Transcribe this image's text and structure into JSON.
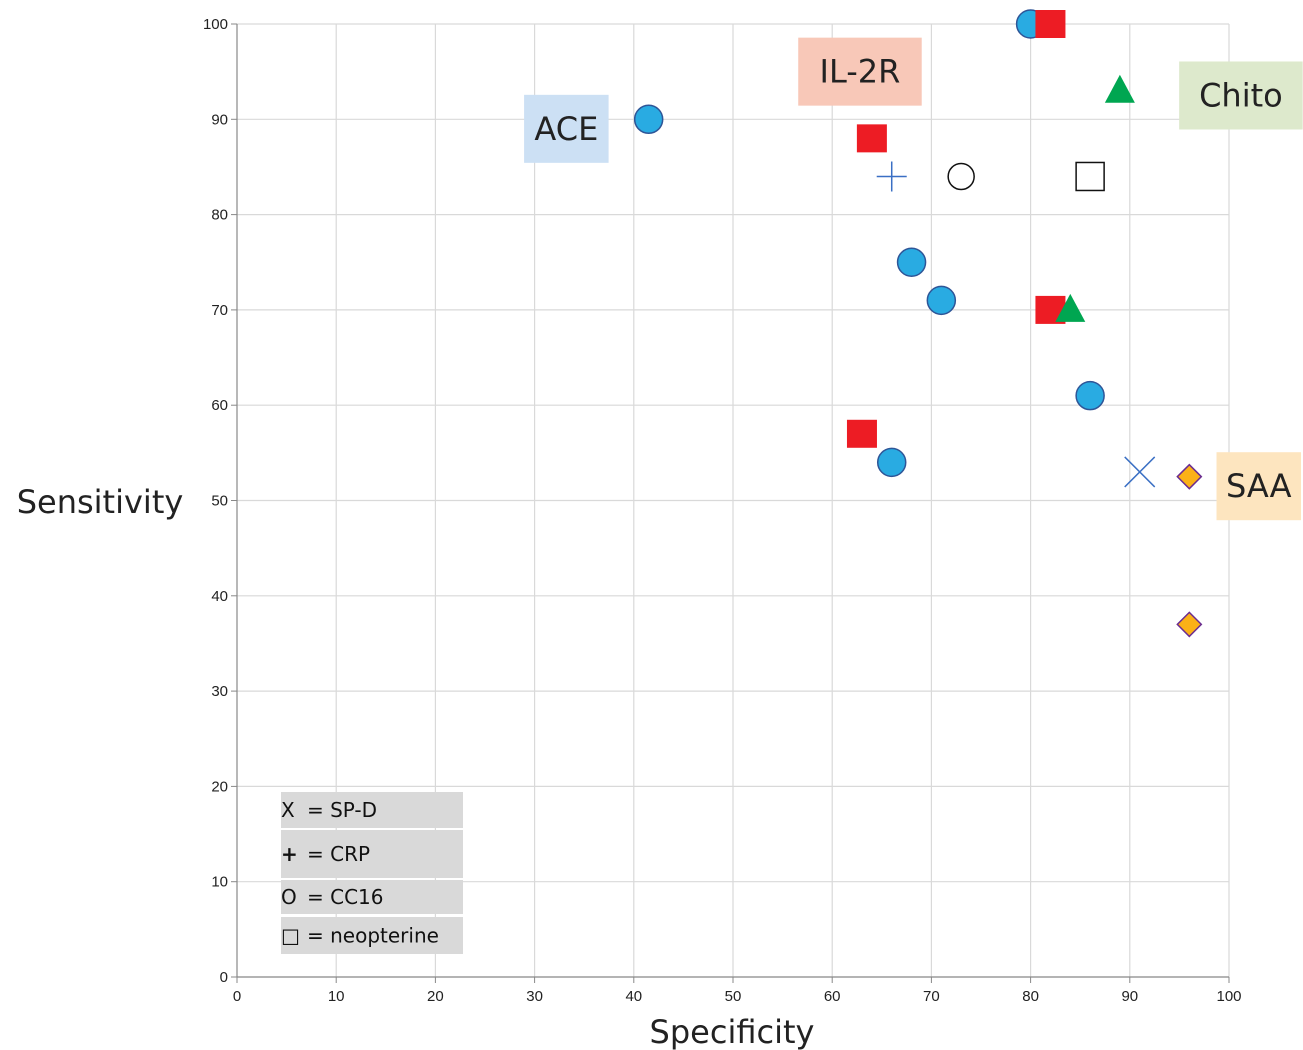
{
  "chart_data": {
    "type": "scatter",
    "xlabel": "Specificity",
    "ylabel": "Sensitivity",
    "xlim": [
      0,
      100
    ],
    "ylim": [
      0,
      100
    ],
    "xticks": [
      "0",
      "10",
      "20",
      "30",
      "40",
      "50",
      "60",
      "70",
      "80",
      "90",
      "100"
    ],
    "yticks": [
      "0",
      "10",
      "20",
      "30",
      "40",
      "50",
      "60",
      "70",
      "80",
      "90",
      "100"
    ],
    "grid": true,
    "series": [
      {
        "name": "ACE",
        "marker": "circle",
        "color": "#29abe2",
        "points": [
          [
            41.5,
            90
          ],
          [
            80,
            100
          ],
          [
            68,
            75
          ],
          [
            71,
            71
          ],
          [
            86,
            61
          ],
          [
            66,
            54
          ]
        ]
      },
      {
        "name": "IL-2R",
        "marker": "square",
        "color": "#ed1c24",
        "points": [
          [
            82,
            100
          ],
          [
            64,
            88
          ],
          [
            82,
            70
          ],
          [
            63,
            57
          ]
        ]
      },
      {
        "name": "Chito",
        "marker": "triangle",
        "color": "#00a651",
        "points": [
          [
            89,
            93
          ],
          [
            84,
            70
          ]
        ]
      },
      {
        "name": "SAA",
        "marker": "diamond",
        "color": "#fbb117",
        "points": [
          [
            96,
            52.5
          ],
          [
            96,
            37
          ]
        ]
      },
      {
        "name": "CRP",
        "marker": "plus",
        "color": "#3a6fc4",
        "points": [
          [
            66,
            84
          ]
        ]
      },
      {
        "name": "CC16",
        "marker": "open-circle",
        "color": "#111111",
        "points": [
          [
            73,
            84
          ]
        ]
      },
      {
        "name": "neopterine",
        "marker": "open-square",
        "color": "#111111",
        "points": [
          [
            86,
            84
          ]
        ]
      },
      {
        "name": "SP-D",
        "marker": "x",
        "color": "#3a6fc4",
        "points": [
          [
            91,
            53
          ]
        ]
      }
    ],
    "annotations": [
      {
        "text": "ACE",
        "x": 33.2,
        "y": 89,
        "bg": "#cce0f4"
      },
      {
        "text": "IL-2R",
        "x": 62.8,
        "y": 95,
        "bg": "#f8c8b8"
      },
      {
        "text": "Chito",
        "x": 101.2,
        "y": 92.5,
        "bg": "#dde9cc"
      },
      {
        "text": "SAA",
        "x": 103,
        "y": 51.5,
        "bg": "#fde5bf"
      }
    ],
    "legend_key": {
      "placement": "bottom-left",
      "entries": [
        {
          "symbol": "X",
          "text": "= SP-D"
        },
        {
          "symbol": "+",
          "text": "= CRP"
        },
        {
          "symbol": "O",
          "text": "= CC16"
        },
        {
          "symbol": "□",
          "text": "= neopterine"
        }
      ]
    }
  }
}
